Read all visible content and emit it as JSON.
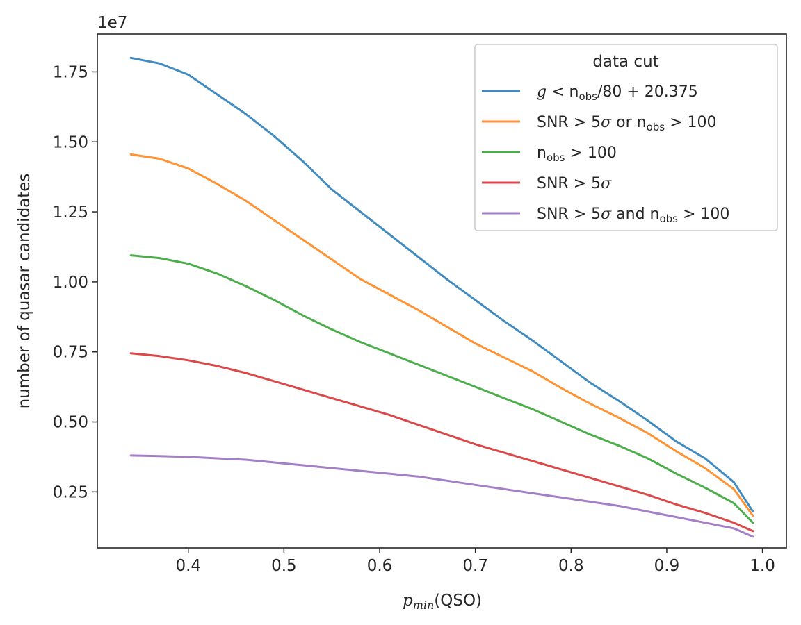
{
  "chart_data": {
    "type": "line",
    "xlabel": {
      "var": "p",
      "sub": "min",
      "rest": "(QSO)"
    },
    "ylabel": "number of quasar candidates",
    "offset_text": "1e7",
    "xlim": [
      0.305,
      1.025
    ],
    "ylim": [
      0.05,
      1.885
    ],
    "xticks": [
      0.4,
      0.5,
      0.6,
      0.7,
      0.8,
      0.9,
      1.0
    ],
    "xtick_labels": [
      "0.4",
      "0.5",
      "0.6",
      "0.7",
      "0.8",
      "0.9",
      "1.0"
    ],
    "yticks": [
      0.25,
      0.5,
      0.75,
      1.0,
      1.25,
      1.5,
      1.75
    ],
    "ytick_labels": [
      "0.25",
      "0.50",
      "0.75",
      "1.00",
      "1.25",
      "1.50",
      "1.75"
    ],
    "legend_title": "data cut",
    "legend_position": "top-right",
    "x": [
      0.34,
      0.37,
      0.4,
      0.43,
      0.46,
      0.49,
      0.52,
      0.55,
      0.58,
      0.61,
      0.64,
      0.67,
      0.7,
      0.73,
      0.76,
      0.79,
      0.82,
      0.85,
      0.88,
      0.91,
      0.94,
      0.97,
      0.99
    ],
    "series": [
      {
        "name": "g < n_obs/80 + 20.375",
        "color": "#1f77b4",
        "label_parts": [
          {
            "t": "g",
            "m": true
          },
          {
            "t": " < n"
          },
          {
            "t": "obs",
            "s": true
          },
          {
            "t": "/80 + 20.375"
          }
        ],
        "values": [
          1.8,
          1.78,
          1.74,
          1.67,
          1.6,
          1.52,
          1.43,
          1.33,
          1.25,
          1.17,
          1.09,
          1.01,
          0.935,
          0.86,
          0.79,
          0.715,
          0.64,
          0.575,
          0.505,
          0.43,
          0.37,
          0.285,
          0.18
        ]
      },
      {
        "name": "SNR > 5σ or n_obs > 100",
        "color": "#ff7f0e",
        "label_parts": [
          {
            "t": "SNR > 5"
          },
          {
            "t": "σ",
            "m": true
          },
          {
            "t": " or n"
          },
          {
            "t": "obs",
            "s": true
          },
          {
            "t": " > 100"
          }
        ],
        "values": [
          1.455,
          1.44,
          1.405,
          1.35,
          1.29,
          1.22,
          1.15,
          1.08,
          1.01,
          0.955,
          0.9,
          0.84,
          0.78,
          0.73,
          0.68,
          0.62,
          0.565,
          0.515,
          0.46,
          0.395,
          0.335,
          0.26,
          0.165
        ]
      },
      {
        "name": "n_obs > 100",
        "color": "#2ca02c",
        "label_parts": [
          {
            "t": "n"
          },
          {
            "t": "obs",
            "s": true
          },
          {
            "t": " > 100"
          }
        ],
        "values": [
          1.095,
          1.085,
          1.065,
          1.03,
          0.985,
          0.935,
          0.88,
          0.83,
          0.785,
          0.745,
          0.705,
          0.665,
          0.625,
          0.585,
          0.545,
          0.5,
          0.455,
          0.415,
          0.37,
          0.315,
          0.265,
          0.21,
          0.14
        ]
      },
      {
        "name": "SNR > 5σ",
        "color": "#d62728",
        "label_parts": [
          {
            "t": "SNR > 5"
          },
          {
            "t": "σ",
            "m": true
          }
        ],
        "values": [
          0.745,
          0.735,
          0.72,
          0.7,
          0.675,
          0.645,
          0.615,
          0.585,
          0.555,
          0.525,
          0.49,
          0.455,
          0.42,
          0.39,
          0.36,
          0.33,
          0.3,
          0.27,
          0.24,
          0.205,
          0.175,
          0.14,
          0.11
        ]
      },
      {
        "name": "SNR > 5σ and n_obs > 100",
        "color": "#9467bd",
        "label_parts": [
          {
            "t": "SNR > 5"
          },
          {
            "t": "σ",
            "m": true
          },
          {
            "t": " and n"
          },
          {
            "t": "obs",
            "s": true
          },
          {
            "t": " > 100"
          }
        ],
        "values": [
          0.38,
          0.378,
          0.375,
          0.37,
          0.365,
          0.355,
          0.345,
          0.335,
          0.325,
          0.315,
          0.305,
          0.29,
          0.275,
          0.26,
          0.245,
          0.23,
          0.215,
          0.2,
          0.18,
          0.16,
          0.14,
          0.12,
          0.09
        ]
      }
    ]
  }
}
